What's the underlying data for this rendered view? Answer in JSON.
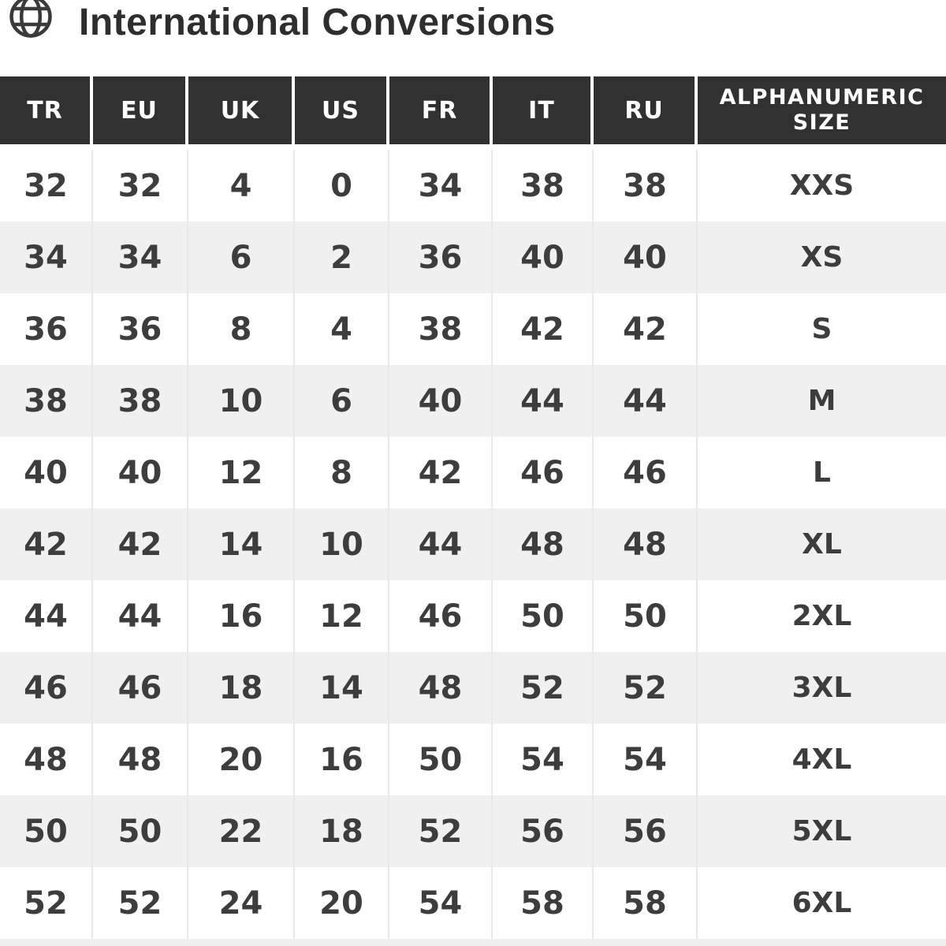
{
  "header": {
    "title": "International Conversions",
    "icon": "globe-icon"
  },
  "chart_data": {
    "type": "table",
    "title": "International Conversions",
    "columns": [
      "TR",
      "EU",
      "UK",
      "US",
      "FR",
      "IT",
      "RU",
      "ALPHANUMERIC SIZE"
    ],
    "rows": [
      [
        "32",
        "32",
        "4",
        "0",
        "34",
        "38",
        "38",
        "XXS"
      ],
      [
        "34",
        "34",
        "6",
        "2",
        "36",
        "40",
        "40",
        "XS"
      ],
      [
        "36",
        "36",
        "8",
        "4",
        "38",
        "42",
        "42",
        "S"
      ],
      [
        "38",
        "38",
        "10",
        "6",
        "40",
        "44",
        "44",
        "M"
      ],
      [
        "40",
        "40",
        "12",
        "8",
        "42",
        "46",
        "46",
        "L"
      ],
      [
        "42",
        "42",
        "14",
        "10",
        "44",
        "48",
        "48",
        "XL"
      ],
      [
        "44",
        "44",
        "16",
        "12",
        "46",
        "50",
        "50",
        "2XL"
      ],
      [
        "46",
        "46",
        "18",
        "14",
        "48",
        "52",
        "52",
        "3XL"
      ],
      [
        "48",
        "48",
        "20",
        "16",
        "50",
        "54",
        "54",
        "4XL"
      ],
      [
        "50",
        "50",
        "22",
        "18",
        "52",
        "56",
        "56",
        "5XL"
      ],
      [
        "52",
        "52",
        "24",
        "20",
        "54",
        "58",
        "58",
        "6XL"
      ]
    ],
    "layout": {
      "zebra_striping": true,
      "first_data_row_background": "white",
      "header_position": "top"
    }
  },
  "colors": {
    "header_bg": "#313131",
    "header_text": "#ffffff",
    "row_alt_bg": "#f0f0f1",
    "row_bg": "#ffffff",
    "body_text": "#3d3d3d",
    "separator": "#e9e9e9",
    "title_text": "#2e2e2e"
  }
}
